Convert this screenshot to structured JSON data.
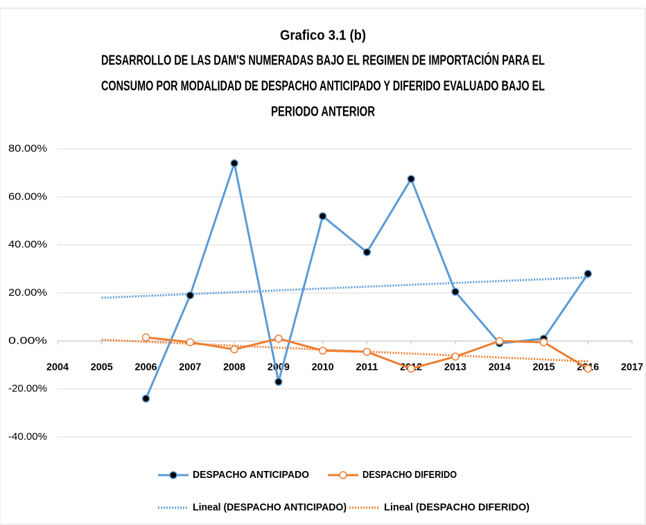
{
  "chart_data": {
    "type": "line",
    "title": "Grafico 3.1 (b)",
    "subtitle_lines": [
      "DESARROLLO DE LAS DAM'S NUMERADAS BAJO EL REGIMEN DE IMPORTACIÓN PARA EL",
      "CONSUMO POR MODALIDAD DE DESPACHO ANTICIPADO Y DIFERIDO EVALUADO BAJO EL",
      "PERIODO ANTERIOR"
    ],
    "x": [
      2006,
      2007,
      2008,
      2009,
      2010,
      2011,
      2012,
      2013,
      2014,
      2015,
      2016
    ],
    "series": [
      {
        "name": "DESPACHO ANTICIPADO",
        "color": "#5b9bd5",
        "marker_fill": "#000000",
        "values": [
          -24,
          19,
          74,
          -17,
          52,
          37,
          67.5,
          20.5,
          -1,
          1,
          28
        ]
      },
      {
        "name": "DESPACHO DIFERIDO",
        "color": "#ed7d31",
        "marker_fill": "#ffffff",
        "values": [
          1.5,
          -0.5,
          -3.5,
          1,
          -4,
          -4.5,
          -11.5,
          -6.5,
          0,
          -0.5,
          -11.5
        ]
      }
    ],
    "trendlines": [
      {
        "name": "Lineal (DESPACHO ANTICIPADO)",
        "color": "#5b9bd5",
        "x": [
          2005,
          2016
        ],
        "values": [
          18,
          26.5
        ]
      },
      {
        "name": "Lineal (DESPACHO DIFERIDO)",
        "color": "#ed7d31",
        "x": [
          2005,
          2016
        ],
        "values": [
          0.5,
          -8.5
        ]
      }
    ],
    "xlim": [
      2004,
      2017
    ],
    "xticks": [
      2004,
      2005,
      2006,
      2007,
      2008,
      2009,
      2010,
      2011,
      2012,
      2013,
      2014,
      2015,
      2016,
      2017
    ],
    "ylim": [
      -40,
      80
    ],
    "yticks": [
      {
        "value": -40,
        "label": "-40.00%"
      },
      {
        "value": -20,
        "label": "-20.00%"
      },
      {
        "value": 0,
        "label": "0.00%"
      },
      {
        "value": 20,
        "label": "20.00%"
      },
      {
        "value": 40,
        "label": "40.00%"
      },
      {
        "value": 60,
        "label": "60.00%"
      },
      {
        "value": 80,
        "label": "80.00%"
      }
    ],
    "grid": true
  }
}
